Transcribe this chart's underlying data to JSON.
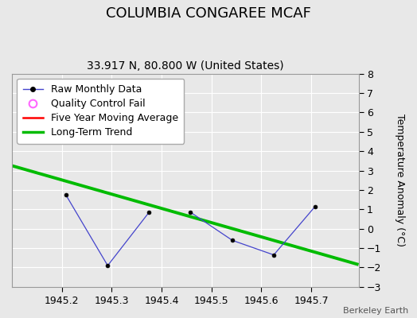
{
  "title": "COLUMBIA CONGAREE MCAF",
  "subtitle": "33.917 N, 80.800 W (United States)",
  "ylabel": "Temperature Anomaly (°C)",
  "watermark": "Berkeley Earth",
  "xlim": [
    1945.1,
    1945.795
  ],
  "ylim": [
    -3,
    8
  ],
  "yticks": [
    -3,
    -2,
    -1,
    0,
    1,
    2,
    3,
    4,
    5,
    6,
    7,
    8
  ],
  "xticks": [
    1945.2,
    1945.3,
    1945.4,
    1945.5,
    1945.6,
    1945.7
  ],
  "raw_segments": [
    {
      "x": [
        1945.208,
        1945.292,
        1945.375
      ],
      "y": [
        1.75,
        -1.9,
        0.85
      ]
    },
    {
      "x": [
        1945.458,
        1945.542,
        1945.625,
        1945.708
      ],
      "y": [
        0.85,
        -0.6,
        -1.35,
        1.15
      ]
    }
  ],
  "trend_x": [
    1945.1,
    1945.795
  ],
  "trend_y": [
    3.25,
    -1.85
  ],
  "bg_color": "#e8e8e8",
  "plot_bg_color": "#e8e8e8",
  "raw_line_color": "#4444cc",
  "trend_color": "#00bb00",
  "ma_color": "#ff0000",
  "qc_color": "#ff66ff",
  "grid_color": "#ffffff",
  "legend_fontsize": 9,
  "title_fontsize": 13,
  "subtitle_fontsize": 10
}
